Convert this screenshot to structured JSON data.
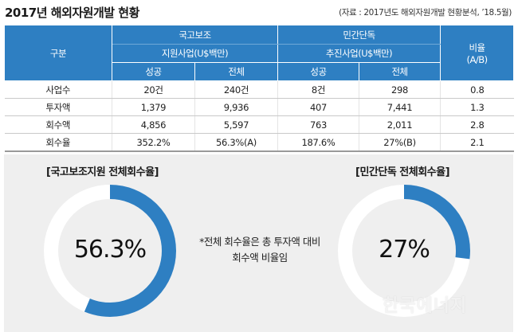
{
  "title": "2017년 해외자원개발 현황",
  "source": "(자료 : 2017년도 해외자원개발 현황분석, ’18.5월)",
  "table": {
    "row_header_label": "구분",
    "group_national": "국고보조",
    "group_national_sub": "지원사업(U$백만)",
    "group_private": "민간단독",
    "group_private_sub": "추진사업(U$백만)",
    "ratio_header_1": "비율",
    "ratio_header_2": "(A/B)",
    "col_success": "성공",
    "col_total": "전체",
    "rows": [
      {
        "label": "사업수",
        "nat_success": "20건",
        "nat_total": "240건",
        "priv_success": "8건",
        "priv_total": "298",
        "ratio": "0.8"
      },
      {
        "label": "투자액",
        "nat_success": "1,379",
        "nat_total": "9,936",
        "priv_success": "407",
        "priv_total": "7,441",
        "ratio": "1.3"
      },
      {
        "label": "회수액",
        "nat_success": "4,856",
        "nat_total": "5,597",
        "priv_success": "763",
        "priv_total": "2,011",
        "ratio": "2.8"
      },
      {
        "label": "회수율",
        "nat_success": "352.2%",
        "nat_total": "56.3%(A)",
        "priv_success": "187.6%",
        "priv_total": "27%(B)",
        "ratio": "2.1"
      }
    ]
  },
  "left_donut": {
    "title": "[국고보조지원 전체회수율]",
    "label": "56.3%",
    "value": 56.3
  },
  "right_donut": {
    "title": "[민간단독 전체회수율]",
    "label": "27%",
    "value": 27
  },
  "note_line1": "*전체 회수율은 총 투자액 대비",
  "note_line2": "회수액 비율임",
  "watermark": "한국에너지",
  "colors": {
    "header_blue": "#2e7fc2",
    "donut_fill": "#2e7fc2",
    "donut_track": "#ffffff",
    "panel_bg": "#efefef"
  }
}
